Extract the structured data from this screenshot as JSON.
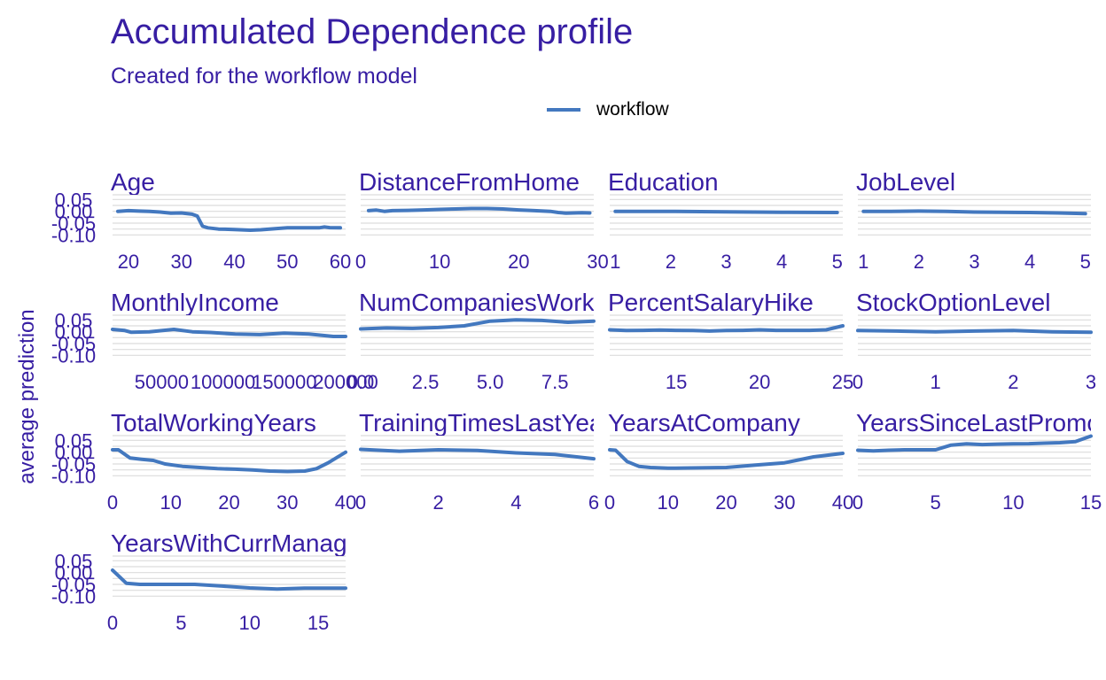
{
  "title": "Accumulated Dependence profile",
  "subtitle": "Created for the workflow model",
  "legend": {
    "label": "workflow",
    "color": "#4378bf"
  },
  "text_color": "#371ea3",
  "grid_color": "#dcdcdc",
  "chart_data": {
    "type": "line",
    "title": "Accumulated Dependence profile",
    "subtitle": "Created for the workflow model",
    "ylabel": "average prediction",
    "xlabel": "",
    "ylim": [
      -0.11,
      0.07
    ],
    "y_ticks": [
      0.05,
      0.0,
      -0.05,
      -0.1
    ],
    "y_tick_labels": [
      "0.05",
      "0.00",
      "-0.05",
      "-0.10"
    ],
    "legend_position": "top-center",
    "grid": true,
    "series": [
      {
        "name": "workflow",
        "color": "#4378bf"
      }
    ],
    "panels": [
      {
        "name": "Age",
        "xlim": [
          17,
          61
        ],
        "x_ticks": [
          20,
          30,
          40,
          50,
          60
        ],
        "x_tick_labels": [
          "20",
          "30",
          "40",
          "50",
          "60"
        ],
        "x": [
          18,
          20,
          22,
          24,
          26,
          28,
          30,
          32,
          33,
          34,
          35,
          37,
          40,
          43,
          45,
          48,
          50,
          53,
          56,
          57,
          58,
          60
        ],
        "y": [
          0.0,
          0.003,
          0.001,
          0.0,
          -0.003,
          -0.008,
          -0.007,
          -0.012,
          -0.02,
          -0.063,
          -0.07,
          -0.075,
          -0.077,
          -0.08,
          -0.078,
          -0.073,
          -0.07,
          -0.07,
          -0.07,
          -0.066,
          -0.069,
          -0.07
        ]
      },
      {
        "name": "DistanceFromHome",
        "xlim": [
          0,
          29.5
        ],
        "x_ticks": [
          0,
          10,
          20,
          30
        ],
        "x_tick_labels": [
          "0",
          "10",
          "20",
          "30"
        ],
        "x": [
          1,
          2,
          3,
          4,
          6,
          8,
          10,
          12,
          14,
          16,
          18,
          20,
          22,
          24,
          25,
          26,
          28,
          29
        ],
        "y": [
          0.003,
          0.005,
          0.0,
          0.003,
          0.004,
          0.006,
          0.008,
          0.01,
          0.012,
          0.012,
          0.01,
          0.006,
          0.003,
          0.0,
          -0.005,
          -0.008,
          -0.006,
          -0.007
        ]
      },
      {
        "name": "Education",
        "xlim": [
          0.9,
          5.1
        ],
        "x_ticks": [
          1,
          2,
          3,
          4,
          5
        ],
        "x_tick_labels": [
          "1",
          "2",
          "3",
          "4",
          "5"
        ],
        "x": [
          1,
          2,
          3,
          4,
          5
        ],
        "y": [
          0.0,
          0.0,
          -0.002,
          -0.004,
          -0.005
        ]
      },
      {
        "name": "JobLevel",
        "xlim": [
          0.9,
          5.1
        ],
        "x_ticks": [
          1,
          2,
          3,
          4,
          5
        ],
        "x_tick_labels": [
          "1",
          "2",
          "3",
          "4",
          "5"
        ],
        "x": [
          1,
          1.5,
          2,
          2.5,
          3,
          3.5,
          4,
          4.5,
          5
        ],
        "y": [
          0.0,
          0.0,
          0.001,
          0.0,
          -0.003,
          -0.004,
          -0.005,
          -0.007,
          -0.01
        ]
      },
      {
        "name": "MonthlyIncome",
        "xlim": [
          10000,
          200000
        ],
        "x_ticks": [
          50000,
          100000,
          150000,
          200000
        ],
        "x_tick_labels": [
          "50000",
          "100000",
          "150000",
          "200000"
        ],
        "x": [
          10000,
          20000,
          25000,
          40000,
          60000,
          75000,
          90000,
          110000,
          130000,
          150000,
          170000,
          190000,
          200000
        ],
        "y": [
          0.01,
          0.005,
          -0.002,
          0.0,
          0.01,
          0.0,
          -0.003,
          -0.01,
          -0.012,
          -0.006,
          -0.01,
          -0.02,
          -0.02
        ]
      },
      {
        "name": "NumCompaniesWorked",
        "xlim": [
          0,
          9
        ],
        "x_ticks": [
          0,
          2.5,
          5.0,
          7.5
        ],
        "x_tick_labels": [
          "0.0",
          "2.5",
          "5.0",
          "7.5"
        ],
        "x": [
          0,
          1,
          2,
          3,
          4,
          5,
          6,
          7,
          8,
          9
        ],
        "y": [
          0.012,
          0.016,
          0.014,
          0.018,
          0.025,
          0.045,
          0.05,
          0.048,
          0.04,
          0.045
        ]
      },
      {
        "name": "PercentSalaryHike",
        "xlim": [
          11,
          25
        ],
        "x_ticks": [
          15,
          20,
          25
        ],
        "x_tick_labels": [
          "15",
          "20",
          "25"
        ],
        "x": [
          11,
          12,
          13,
          14,
          15,
          16,
          17,
          18,
          19,
          20,
          21,
          22,
          23,
          24,
          25
        ],
        "y": [
          0.008,
          0.005,
          0.006,
          0.007,
          0.006,
          0.005,
          0.003,
          0.005,
          0.006,
          0.008,
          0.006,
          0.006,
          0.006,
          0.008,
          0.025
        ]
      },
      {
        "name": "StockOptionLevel",
        "xlim": [
          0,
          3
        ],
        "x_ticks": [
          0,
          1,
          2,
          3
        ],
        "x_tick_labels": [
          "0",
          "1",
          "2",
          "3"
        ],
        "x": [
          0,
          0.5,
          1,
          1.5,
          2,
          2.5,
          3
        ],
        "y": [
          0.005,
          0.003,
          0.0,
          0.003,
          0.005,
          0.0,
          -0.002
        ]
      },
      {
        "name": "TotalWorkingYears",
        "xlim": [
          0,
          40
        ],
        "x_ticks": [
          0,
          10,
          20,
          30,
          40
        ],
        "x_tick_labels": [
          "0",
          "10",
          "20",
          "30",
          "40"
        ],
        "x": [
          0,
          1,
          3,
          5,
          7,
          9,
          12,
          15,
          18,
          21,
          24,
          27,
          30,
          33,
          35,
          37,
          40
        ],
        "y": [
          0.01,
          0.01,
          -0.025,
          -0.03,
          -0.035,
          -0.05,
          -0.06,
          -0.065,
          -0.07,
          -0.072,
          -0.075,
          -0.08,
          -0.082,
          -0.08,
          -0.07,
          -0.045,
          0.0
        ]
      },
      {
        "name": "TrainingTimesLastYear",
        "xlim": [
          0,
          6
        ],
        "x_ticks": [
          0,
          2,
          4,
          6
        ],
        "x_tick_labels": [
          "0",
          "2",
          "4",
          "6"
        ],
        "x": [
          0,
          1,
          2,
          3,
          4,
          5,
          6
        ],
        "y": [
          0.012,
          0.004,
          0.01,
          0.007,
          -0.003,
          -0.01,
          -0.028
        ]
      },
      {
        "name": "YearsAtCompany",
        "xlim": [
          0,
          40
        ],
        "x_ticks": [
          0,
          10,
          20,
          30,
          40
        ],
        "x_tick_labels": [
          "0",
          "10",
          "20",
          "30",
          "40"
        ],
        "x": [
          0,
          1,
          3,
          5,
          7,
          10,
          14,
          20,
          25,
          30,
          35,
          40
        ],
        "y": [
          0.01,
          0.008,
          -0.04,
          -0.06,
          -0.065,
          -0.068,
          -0.067,
          -0.065,
          -0.055,
          -0.045,
          -0.02,
          -0.005
        ]
      },
      {
        "name": "YearsSinceLastPromotion",
        "xlim": [
          0,
          15
        ],
        "x_ticks": [
          0,
          5,
          10,
          15
        ],
        "x_tick_labels": [
          "0",
          "5",
          "10",
          "15"
        ],
        "x": [
          0,
          1,
          2,
          3,
          4,
          5,
          6,
          7,
          8,
          9,
          10,
          11,
          12,
          13,
          14,
          15
        ],
        "y": [
          0.008,
          0.005,
          0.008,
          0.01,
          0.01,
          0.01,
          0.03,
          0.035,
          0.032,
          0.034,
          0.035,
          0.036,
          0.038,
          0.04,
          0.045,
          0.068
        ]
      },
      {
        "name": "YearsWithCurrManager",
        "xlim": [
          0,
          17
        ],
        "x_ticks": [
          0,
          5,
          10,
          15
        ],
        "x_tick_labels": [
          "0",
          "5",
          "10",
          "15"
        ],
        "x": [
          0,
          1,
          2,
          4,
          6,
          8,
          10,
          12,
          14,
          17
        ],
        "y": [
          0.01,
          -0.045,
          -0.05,
          -0.05,
          -0.05,
          -0.057,
          -0.065,
          -0.07,
          -0.066,
          -0.066
        ]
      }
    ]
  }
}
